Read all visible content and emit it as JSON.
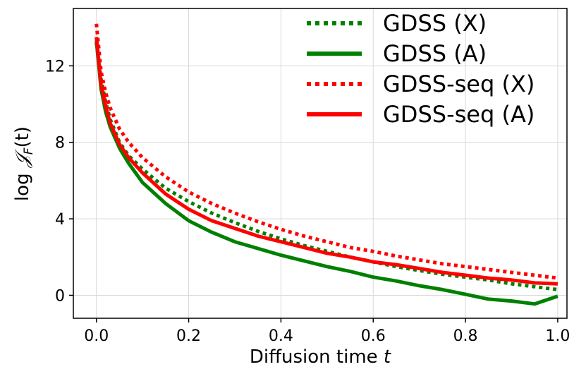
{
  "chart_data": {
    "type": "line",
    "title": "",
    "xlabel": "Diffusion time",
    "xlabel_var": "t",
    "ylabel_prefix": "log",
    "ylabel_symbol": "𝒥",
    "ylabel_sub": "F",
    "ylabel_arg": "(t)",
    "xlim": [
      -0.05,
      1.02
    ],
    "ylim": [
      -1.2,
      15.0
    ],
    "xticks": [
      0.0,
      0.2,
      0.4,
      0.6,
      0.8,
      1.0
    ],
    "xtick_labels": [
      "0.0",
      "0.2",
      "0.4",
      "0.6",
      "0.8",
      "1.0"
    ],
    "yticks": [
      0,
      4,
      8,
      12
    ],
    "ytick_labels": [
      "0",
      "4",
      "8",
      "12"
    ],
    "grid": true,
    "legend_position": "top-right",
    "series": [
      {
        "name": "GDSS (X)",
        "color": "#008000",
        "style": "dotted",
        "x": [
          0.0,
          0.01,
          0.02,
          0.03,
          0.05,
          0.07,
          0.1,
          0.15,
          0.2,
          0.25,
          0.3,
          0.35,
          0.4,
          0.45,
          0.5,
          0.55,
          0.6,
          0.65,
          0.7,
          0.75,
          0.8,
          0.85,
          0.9,
          0.95,
          1.0
        ],
        "values": [
          13.2,
          11.3,
          10.1,
          9.2,
          8.0,
          7.3,
          6.6,
          5.6,
          4.9,
          4.3,
          3.8,
          3.35,
          2.95,
          2.6,
          2.3,
          2.0,
          1.75,
          1.5,
          1.3,
          1.1,
          0.95,
          0.8,
          0.6,
          0.45,
          0.3
        ]
      },
      {
        "name": "GDSS (A)",
        "color": "#008000",
        "style": "solid",
        "x": [
          0.0,
          0.01,
          0.02,
          0.03,
          0.05,
          0.07,
          0.1,
          0.15,
          0.2,
          0.25,
          0.3,
          0.35,
          0.4,
          0.45,
          0.5,
          0.55,
          0.6,
          0.65,
          0.7,
          0.75,
          0.8,
          0.85,
          0.9,
          0.95,
          1.0
        ],
        "values": [
          13.3,
          10.8,
          9.6,
          8.8,
          7.7,
          6.9,
          5.9,
          4.8,
          3.9,
          3.3,
          2.8,
          2.45,
          2.1,
          1.8,
          1.5,
          1.25,
          0.95,
          0.75,
          0.5,
          0.3,
          0.05,
          -0.2,
          -0.3,
          -0.45,
          -0.05
        ]
      },
      {
        "name": "GDSS-seq (X)",
        "color": "#ff0000",
        "style": "dotted",
        "x": [
          0.0,
          0.01,
          0.02,
          0.03,
          0.05,
          0.07,
          0.1,
          0.15,
          0.2,
          0.25,
          0.3,
          0.35,
          0.4,
          0.45,
          0.5,
          0.55,
          0.6,
          0.65,
          0.7,
          0.75,
          0.8,
          0.85,
          0.9,
          0.95,
          1.0
        ],
        "values": [
          14.2,
          11.7,
          10.6,
          9.8,
          8.7,
          8.0,
          7.2,
          6.2,
          5.4,
          4.8,
          4.3,
          3.85,
          3.45,
          3.1,
          2.8,
          2.5,
          2.3,
          2.05,
          1.85,
          1.65,
          1.5,
          1.35,
          1.2,
          1.05,
          0.9
        ]
      },
      {
        "name": "GDSS-seq (A)",
        "color": "#ff0000",
        "style": "solid",
        "x": [
          0.0,
          0.01,
          0.02,
          0.03,
          0.05,
          0.07,
          0.1,
          0.15,
          0.2,
          0.25,
          0.3,
          0.35,
          0.4,
          0.45,
          0.5,
          0.55,
          0.6,
          0.65,
          0.7,
          0.75,
          0.8,
          0.85,
          0.9,
          0.95,
          1.0
        ],
        "values": [
          13.5,
          11.0,
          9.9,
          9.0,
          7.9,
          7.2,
          6.4,
          5.3,
          4.5,
          3.9,
          3.5,
          3.1,
          2.8,
          2.5,
          2.2,
          2.0,
          1.75,
          1.6,
          1.4,
          1.2,
          1.05,
          0.9,
          0.8,
          0.65,
          0.6
        ]
      }
    ]
  }
}
